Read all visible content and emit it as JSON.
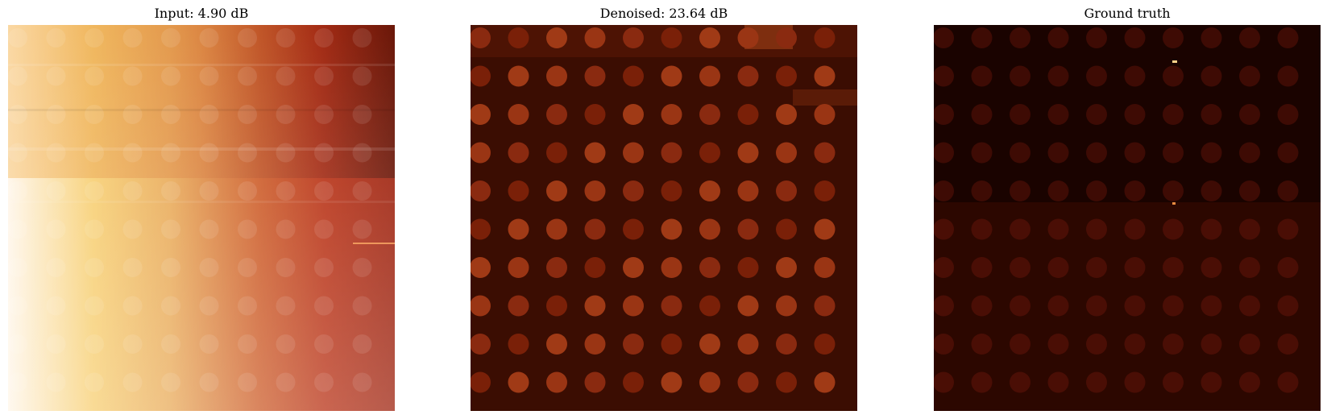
{
  "figure": {
    "colormap": "afmhot",
    "panels": [
      {
        "title": "Input: 4.90 dB",
        "kind": "input"
      },
      {
        "title": "Denoised: 23.64 dB",
        "kind": "denoised"
      },
      {
        "title": "Ground truth",
        "kind": "ground-truth"
      }
    ]
  }
}
